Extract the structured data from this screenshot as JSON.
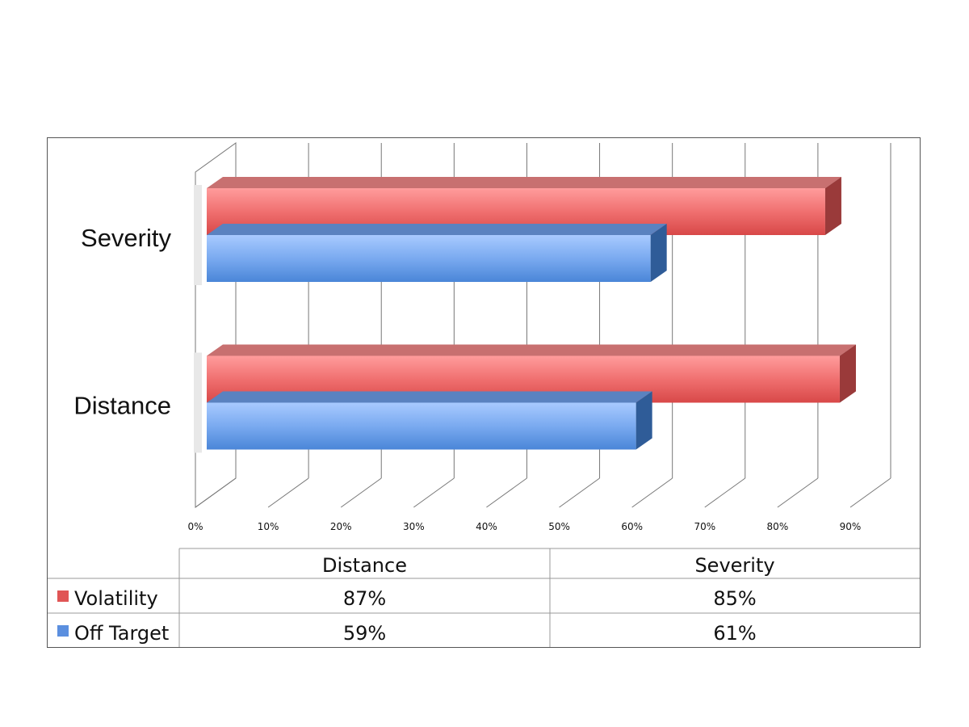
{
  "chart_data": {
    "type": "bar",
    "orientation": "horizontal",
    "style": "3d",
    "categories": [
      "Severity",
      "Distance"
    ],
    "series": [
      {
        "name": "Volatility",
        "color": "#e05555",
        "values": [
          0.85,
          0.87
        ]
      },
      {
        "name": "Off Target",
        "color": "#5b8fdf",
        "values": [
          0.61,
          0.59
        ]
      }
    ],
    "xlim": [
      0,
      0.9
    ],
    "x_ticks": [
      0,
      0.1,
      0.2,
      0.3,
      0.4,
      0.5,
      0.6,
      0.7,
      0.8,
      0.9
    ],
    "x_tick_labels": [
      "0%",
      "10%",
      "20%",
      "30%",
      "40%",
      "50%",
      "60%",
      "70%",
      "80%",
      "90%"
    ],
    "grid": true,
    "legend": "data-table-below",
    "data_table": {
      "columns": [
        "Distance",
        "Severity"
      ],
      "rows": [
        {
          "series": "Volatility",
          "color": "#e05555",
          "cells": [
            "87%",
            "85%"
          ]
        },
        {
          "series": "Off Target",
          "color": "#5b8fdf",
          "cells": [
            "59%",
            "61%"
          ]
        }
      ]
    }
  }
}
